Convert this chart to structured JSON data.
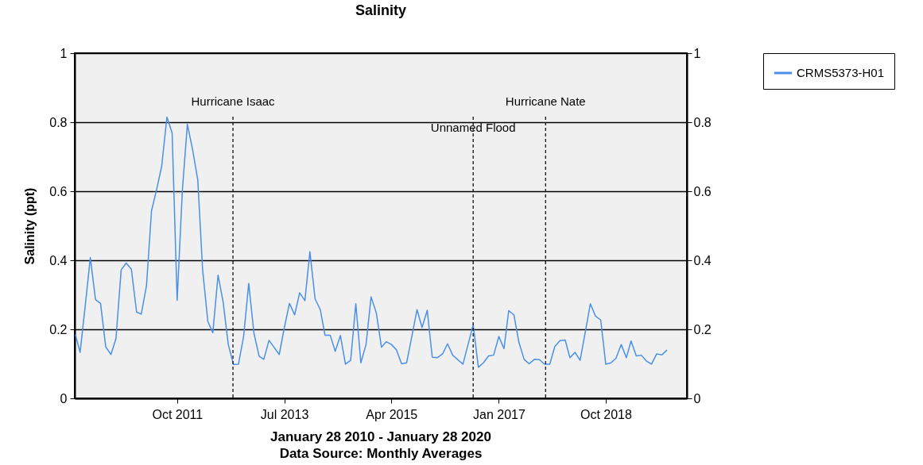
{
  "chart_data": {
    "type": "line",
    "title": "Salinity",
    "xlabel": "January 28 2010 - January 28 2020",
    "ylabel": "Salinity (ppt)",
    "annotations": [
      "Data Source: Monthly Averages"
    ],
    "x": [
      "2010-02",
      "2010-03",
      "2010-04",
      "2010-05",
      "2010-06",
      "2010-07",
      "2010-08",
      "2010-09",
      "2010-10",
      "2010-11",
      "2010-12",
      "2011-01",
      "2011-02",
      "2011-03",
      "2011-04",
      "2011-05",
      "2011-06",
      "2011-07",
      "2011-08",
      "2011-09",
      "2011-10",
      "2011-11",
      "2011-12",
      "2012-01",
      "2012-02",
      "2012-03",
      "2012-04",
      "2012-05",
      "2012-06",
      "2012-07",
      "2012-08",
      "2012-09",
      "2012-10",
      "2012-11",
      "2012-12",
      "2013-01",
      "2013-02",
      "2013-03",
      "2013-04",
      "2013-05",
      "2013-06",
      "2013-07",
      "2013-08",
      "2013-09",
      "2013-10",
      "2013-11",
      "2013-12",
      "2014-01",
      "2014-02",
      "2014-03",
      "2014-04",
      "2014-05",
      "2014-06",
      "2014-07",
      "2014-08",
      "2014-09",
      "2014-10",
      "2014-11",
      "2014-12",
      "2015-01",
      "2015-02",
      "2015-03",
      "2015-04",
      "2015-05",
      "2015-06",
      "2015-07",
      "2015-08",
      "2015-09",
      "2015-10",
      "2015-11",
      "2015-12",
      "2016-01",
      "2016-02",
      "2016-03",
      "2016-04",
      "2016-05",
      "2016-06",
      "2016-07",
      "2016-08",
      "2016-09",
      "2016-10",
      "2016-11",
      "2016-12",
      "2017-01",
      "2017-02",
      "2017-03",
      "2017-04",
      "2017-05",
      "2017-06",
      "2017-07",
      "2017-08",
      "2017-09",
      "2017-10",
      "2017-11",
      "2017-12",
      "2018-01",
      "2018-02",
      "2018-03",
      "2018-04",
      "2018-05",
      "2018-06",
      "2018-07",
      "2018-08",
      "2018-09",
      "2018-10",
      "2018-11",
      "2018-12",
      "2019-01",
      "2019-02",
      "2019-03",
      "2019-04",
      "2019-05",
      "2019-06",
      "2019-07",
      "2019-08",
      "2019-09",
      "2019-10"
    ],
    "series": [
      {
        "name": "CRMS5373-H01",
        "color": "#4a90e8",
        "values": [
          0.185,
          0.133,
          0.27,
          0.408,
          0.286,
          0.275,
          0.149,
          0.127,
          0.173,
          0.372,
          0.392,
          0.374,
          0.25,
          0.244,
          0.326,
          0.543,
          0.606,
          0.673,
          0.815,
          0.769,
          0.284,
          0.602,
          0.794,
          0.721,
          0.633,
          0.372,
          0.223,
          0.19,
          0.357,
          0.28,
          0.156,
          0.098,
          0.099,
          0.181,
          0.333,
          0.189,
          0.122,
          0.113,
          0.168,
          0.148,
          0.127,
          0.204,
          0.275,
          0.242,
          0.306,
          0.283,
          0.425,
          0.288,
          0.257,
          0.183,
          0.183,
          0.136,
          0.182,
          0.099,
          0.11,
          0.274,
          0.103,
          0.156,
          0.294,
          0.248,
          0.148,
          0.164,
          0.156,
          0.141,
          0.1,
          0.103,
          0.179,
          0.257,
          0.205,
          0.255,
          0.119,
          0.118,
          0.129,
          0.158,
          0.125,
          0.112,
          0.099,
          0.155,
          0.213,
          0.09,
          0.103,
          0.123,
          0.125,
          0.179,
          0.144,
          0.254,
          0.242,
          0.162,
          0.113,
          0.1,
          0.113,
          0.112,
          0.099,
          0.099,
          0.15,
          0.167,
          0.169,
          0.118,
          0.133,
          0.11,
          0.192,
          0.274,
          0.238,
          0.227,
          0.099,
          0.103,
          0.116,
          0.156,
          0.118,
          0.166,
          0.123,
          0.125,
          0.108,
          0.099,
          0.129,
          0.126,
          0.14
        ]
      }
    ],
    "xlim": [
      "2010-01-28",
      "2020-01-28"
    ],
    "xticks": [
      {
        "value": "2011-10",
        "label": "Oct 2011"
      },
      {
        "value": "2013-07",
        "label": "Jul 2013"
      },
      {
        "value": "2015-04",
        "label": "Apr 2015"
      },
      {
        "value": "2017-01",
        "label": "Jan 2017"
      },
      {
        "value": "2018-10",
        "label": "Oct 2018"
      }
    ],
    "ylim": [
      0,
      1
    ],
    "yticks": [
      0,
      0.2,
      0.4,
      0.6,
      0.8,
      1
    ],
    "y2lim": [
      0,
      1
    ],
    "y2ticks": [
      0,
      0.2,
      0.4,
      0.6,
      0.8,
      1
    ],
    "ref_lines": [
      {
        "axis": "x",
        "value": "2012-08-29",
        "label": "Hurricane Isaac",
        "color": "#000000",
        "line_style": "dashed"
      },
      {
        "axis": "x",
        "value": "2016-08-01",
        "label": "Unnamed Flood",
        "color": "#000000",
        "line_style": "dashed"
      },
      {
        "axis": "x",
        "value": "2017-10-07",
        "label": "Hurricane Nate",
        "color": "#000000",
        "line_style": "dashed"
      }
    ],
    "grid": "y",
    "legend": "top right",
    "marker": "none",
    "line_style": "solid"
  }
}
